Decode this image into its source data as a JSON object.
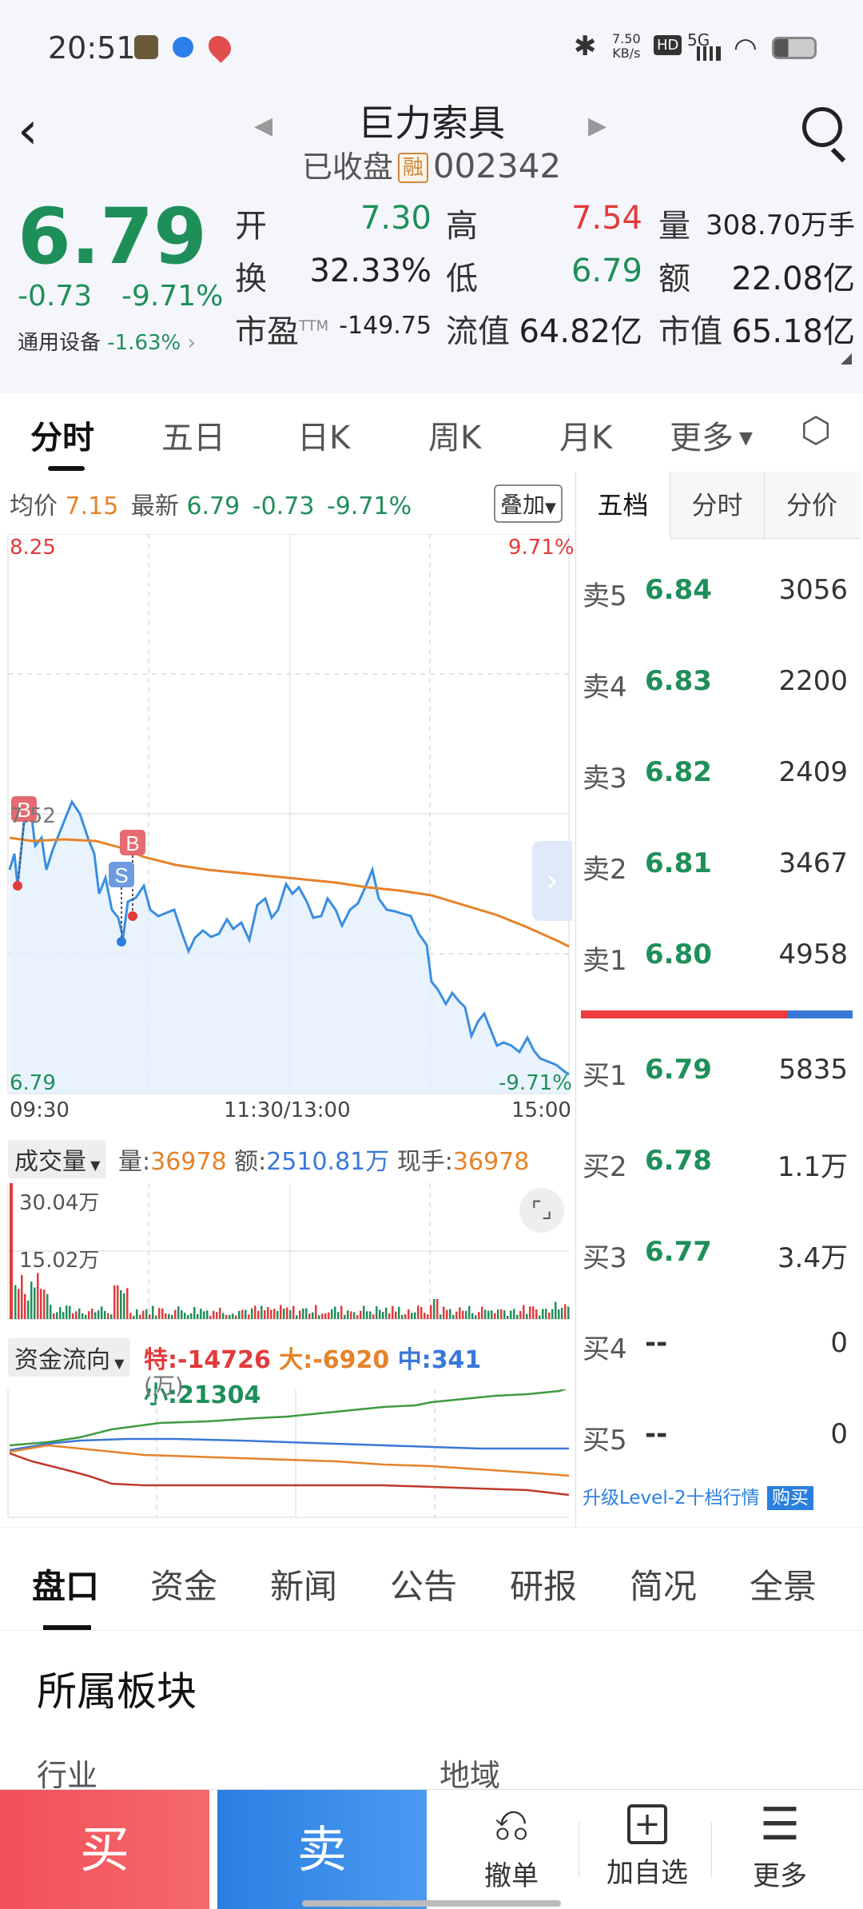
{
  "status_bar": {
    "time": "20:51",
    "net_speed_value": "7.50",
    "net_speed_unit": "KB/s",
    "hd": "HD",
    "signal": "5G",
    "icons": [
      "app-icon",
      "browser-icon",
      "map-icon",
      "bluetooth-icon",
      "wifi-icon",
      "battery-icon"
    ]
  },
  "header": {
    "title": "巨力索具",
    "status": "已收盘",
    "badge": "融",
    "code": "002342"
  },
  "quote": {
    "price": "6.79",
    "change": "-0.73",
    "change_pct": "-9.71%",
    "sector_name": "通用设备",
    "sector_pct": "-1.63%",
    "fields": {
      "open_label": "开",
      "open": "7.30",
      "high_label": "高",
      "high": "7.54",
      "vol_label": "量",
      "vol": "308.70万手",
      "turnover_label": "换",
      "turnover": "32.33%",
      "low_label": "低",
      "low": "6.79",
      "amount_label": "额",
      "amount": "22.08亿",
      "pe_label": "市盈",
      "pe_sup": "TTM",
      "pe": "-149.75",
      "float_label": "流值",
      "float": "64.82亿",
      "mktcap_label": "市值",
      "mktcap": "65.18亿"
    }
  },
  "tabs": [
    "分时",
    "五日",
    "日K",
    "周K",
    "月K",
    "更多"
  ],
  "chart_header": {
    "avg_label": "均价",
    "avg": "7.15",
    "last_label": "最新",
    "last": "6.79",
    "chg": "-0.73",
    "chg_pct": "-9.71%",
    "overlay": "叠加"
  },
  "price_axis": {
    "top": "8.25",
    "mid": "7.52",
    "bottom": "6.79",
    "top_pct": "9.71%",
    "bottom_pct": "-9.71%",
    "time_start": "09:30",
    "time_mid": "11:30/13:00",
    "time_end": "15:00",
    "marker_b": "B",
    "marker_s": "S"
  },
  "volume": {
    "selector": "成交量",
    "vol_label": "量:",
    "vol": "36978",
    "amt_label": "额:",
    "amt": "2510.81万",
    "hand_label": "现手:",
    "hand": "36978",
    "axis_top": "30.04万",
    "axis_mid": "15.02万"
  },
  "fund_flow": {
    "selector": "资金流向",
    "te_label": "特:",
    "te": "-14726",
    "da_label": "大:",
    "da": "-6920",
    "zhong_label": "中:",
    "zhong": "341",
    "xiao_label": "小:",
    "xiao": "21304",
    "unit": "(万)"
  },
  "right_tabs": [
    "五档",
    "分时",
    "分价"
  ],
  "order_book": {
    "asks": [
      {
        "label": "卖5",
        "price": "6.84",
        "vol": "3056"
      },
      {
        "label": "卖4",
        "price": "6.83",
        "vol": "2200"
      },
      {
        "label": "卖3",
        "price": "6.82",
        "vol": "2409"
      },
      {
        "label": "卖2",
        "price": "6.81",
        "vol": "3467"
      },
      {
        "label": "卖1",
        "price": "6.80",
        "vol": "4958"
      }
    ],
    "bids": [
      {
        "label": "买1",
        "price": "6.79",
        "vol": "5835"
      },
      {
        "label": "买2",
        "price": "6.78",
        "vol": "1.1万"
      },
      {
        "label": "买3",
        "price": "6.77",
        "vol": "3.4万"
      },
      {
        "label": "买4",
        "price": "--",
        "vol": "0"
      },
      {
        "label": "买5",
        "price": "--",
        "vol": "0"
      }
    ],
    "upgrade_text": "升级Level-2十档行情",
    "buy_button": "购买"
  },
  "bottom_tabs": [
    "盘口",
    "资金",
    "新闻",
    "公告",
    "研报",
    "简况",
    "全景"
  ],
  "sector_section": {
    "title": "所属板块",
    "industry_label": "行业",
    "region_label": "地域"
  },
  "action_bar": {
    "buy": "买",
    "sell": "卖",
    "cancel": "撤单",
    "add_watch": "加自选",
    "more": "更多"
  },
  "colors": {
    "up": "#e23b3b",
    "down": "#1f8f5a",
    "avg_line": "#e5832a",
    "price_line": "#3a8ee0",
    "buy_button": "#f2505a",
    "sell_button": "#2a7fe0"
  }
}
